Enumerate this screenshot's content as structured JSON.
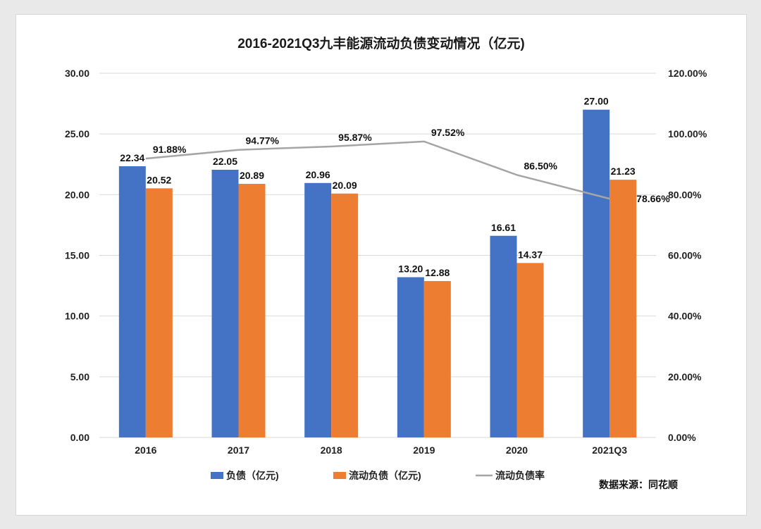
{
  "chart_data": {
    "type": "bar",
    "title": "2016-2021Q3九丰能源流动负债变动情况（亿元)",
    "categories": [
      "2016",
      "2017",
      "2018",
      "2019",
      "2020",
      "2021Q3"
    ],
    "series": [
      {
        "name": "负债（亿元)",
        "type": "bar",
        "axis": "left",
        "color": "#4472c4",
        "values": [
          22.34,
          22.05,
          20.96,
          13.2,
          16.61,
          27.0
        ],
        "labels": [
          "22.34",
          "22.05",
          "20.96",
          "13.20",
          "16.61",
          "27.00"
        ]
      },
      {
        "name": "流动负债（亿元)",
        "type": "bar",
        "axis": "left",
        "color": "#ed7d31",
        "values": [
          20.52,
          20.89,
          20.09,
          12.88,
          14.37,
          21.23
        ],
        "labels": [
          "20.52",
          "20.89",
          "20.09",
          "12.88",
          "14.37",
          "21.23"
        ]
      },
      {
        "name": "流动负债率",
        "type": "line",
        "axis": "right",
        "color": "#a5a5a5",
        "values": [
          91.88,
          94.77,
          95.87,
          97.52,
          86.5,
          78.66
        ],
        "labels": [
          "91.88%",
          "94.77%",
          "95.87%",
          "97.52%",
          "86.50%",
          "78.66%"
        ]
      }
    ],
    "y_left": {
      "ylim": [
        0,
        30
      ],
      "ticks": [
        "0.00",
        "5.00",
        "10.00",
        "15.00",
        "20.00",
        "25.00",
        "30.00"
      ]
    },
    "y_right": {
      "ylim": [
        0,
        120
      ],
      "ticks": [
        "0.00%",
        "20.00%",
        "40.00%",
        "60.00%",
        "80.00%",
        "100.00%",
        "120.00%"
      ]
    },
    "grid": true,
    "legend_position": "bottom"
  },
  "source_note": "数据来源：同花顺",
  "colors": {
    "bar1": "#4472c4",
    "bar2": "#ed7d31",
    "line": "#a5a5a5",
    "grid": "#d9d9d9"
  }
}
